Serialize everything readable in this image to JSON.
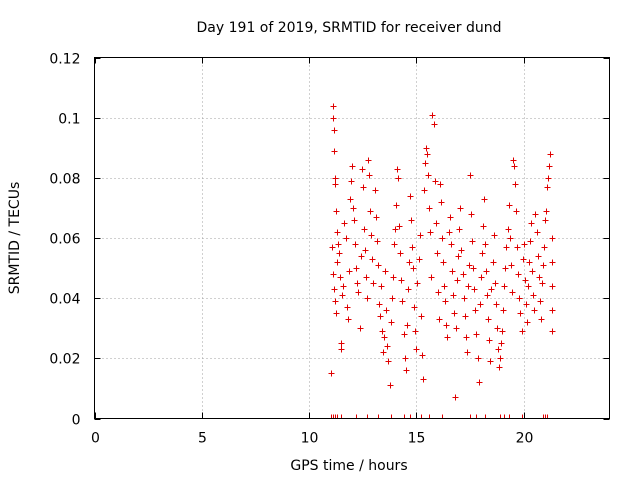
{
  "chart_data": {
    "type": "scatter",
    "title": "Day 191 of 2019, SRMTID for receiver dund",
    "xlabel": "GPS time / hours",
    "ylabel": "SRMTID / TECUs",
    "xlim": [
      0,
      24
    ],
    "ylim": [
      0,
      0.12
    ],
    "xticks": [
      0,
      5,
      10,
      15,
      20
    ],
    "xtick_labels": [
      "0",
      "5",
      "10",
      "15",
      "20"
    ],
    "yticks": [
      0,
      0.02,
      0.04,
      0.06,
      0.08,
      0.1,
      0.12
    ],
    "ytick_labels": [
      "0",
      "0.02",
      "0.04",
      "0.06",
      "0.08",
      "0.1",
      "0.12"
    ],
    "grid": true,
    "marker": "+",
    "color": "#e00000",
    "series": [
      {
        "name": "SRMTID",
        "points": [
          [
            11.0,
            0.015
          ],
          [
            11.05,
            0.057
          ],
          [
            11.1,
            0.104
          ],
          [
            11.12,
            0.1
          ],
          [
            11.15,
            0.096
          ],
          [
            11.18,
            0.089
          ],
          [
            11.2,
            0.08
          ],
          [
            11.22,
            0.078
          ],
          [
            11.25,
            0.069
          ],
          [
            11.28,
            0.062
          ],
          [
            11.1,
            0.048
          ],
          [
            11.15,
            0.043
          ],
          [
            11.2,
            0.039
          ],
          [
            11.25,
            0.035
          ],
          [
            11.3,
            0.052
          ],
          [
            11.35,
            0.058
          ],
          [
            11.4,
            0.055
          ],
          [
            11.45,
            0.047
          ],
          [
            11.5,
            0.025
          ],
          [
            11.5,
            0.023
          ],
          [
            11.55,
            0.041
          ],
          [
            11.6,
            0.044
          ],
          [
            11.65,
            0.065
          ],
          [
            11.7,
            0.06
          ],
          [
            11.75,
            0.037
          ],
          [
            11.8,
            0.033
          ],
          [
            11.85,
            0.049
          ],
          [
            11.9,
            0.073
          ],
          [
            11.95,
            0.079
          ],
          [
            12.0,
            0.084
          ],
          [
            12.05,
            0.07
          ],
          [
            12.1,
            0.066
          ],
          [
            12.15,
            0.058
          ],
          [
            12.2,
            0.05
          ],
          [
            12.25,
            0.045
          ],
          [
            12.3,
            0.042
          ],
          [
            12.35,
            0.03
          ],
          [
            12.4,
            0.054
          ],
          [
            12.45,
            0.083
          ],
          [
            12.5,
            0.077
          ],
          [
            12.55,
            0.063
          ],
          [
            12.6,
            0.056
          ],
          [
            12.65,
            0.047
          ],
          [
            12.7,
            0.04
          ],
          [
            12.75,
            0.086
          ],
          [
            12.8,
            0.081
          ],
          [
            12.85,
            0.069
          ],
          [
            12.9,
            0.061
          ],
          [
            12.95,
            0.053
          ],
          [
            13.0,
            0.045
          ],
          [
            13.05,
            0.076
          ],
          [
            13.1,
            0.067
          ],
          [
            13.15,
            0.059
          ],
          [
            13.2,
            0.051
          ],
          [
            13.25,
            0.038
          ],
          [
            13.3,
            0.034
          ],
          [
            13.35,
            0.044
          ],
          [
            13.4,
            0.029
          ],
          [
            13.45,
            0.022
          ],
          [
            13.5,
            0.027
          ],
          [
            13.55,
            0.049
          ],
          [
            13.6,
            0.036
          ],
          [
            13.65,
            0.024
          ],
          [
            13.7,
            0.019
          ],
          [
            13.75,
            0.011
          ],
          [
            13.8,
            0.032
          ],
          [
            13.85,
            0.04
          ],
          [
            13.9,
            0.047
          ],
          [
            13.95,
            0.058
          ],
          [
            14.0,
            0.063
          ],
          [
            14.05,
            0.071
          ],
          [
            14.1,
            0.083
          ],
          [
            14.15,
            0.08
          ],
          [
            14.2,
            0.064
          ],
          [
            14.25,
            0.055
          ],
          [
            14.3,
            0.046
          ],
          [
            14.35,
            0.039
          ],
          [
            14.4,
            0.028
          ],
          [
            14.45,
            0.02
          ],
          [
            14.5,
            0.016
          ],
          [
            14.55,
            0.031
          ],
          [
            14.6,
            0.043
          ],
          [
            14.65,
            0.052
          ],
          [
            14.7,
            0.074
          ],
          [
            14.75,
            0.066
          ],
          [
            14.8,
            0.057
          ],
          [
            14.85,
            0.05
          ],
          [
            14.9,
            0.037
          ],
          [
            14.95,
            0.029
          ],
          [
            15.0,
            0.023
          ],
          [
            15.05,
            0.045
          ],
          [
            15.1,
            0.053
          ],
          [
            15.15,
            0.061
          ],
          [
            15.2,
            0.034
          ],
          [
            15.25,
            0.021
          ],
          [
            15.3,
            0.013
          ],
          [
            15.35,
            0.076
          ],
          [
            15.4,
            0.085
          ],
          [
            15.45,
            0.09
          ],
          [
            15.5,
            0.088
          ],
          [
            15.55,
            0.081
          ],
          [
            15.6,
            0.07
          ],
          [
            15.65,
            0.062
          ],
          [
            15.7,
            0.047
          ],
          [
            15.75,
            0.101
          ],
          [
            15.8,
            0.098
          ],
          [
            15.85,
            0.079
          ],
          [
            15.9,
            0.065
          ],
          [
            15.95,
            0.055
          ],
          [
            16.0,
            0.042
          ],
          [
            16.05,
            0.033
          ],
          [
            16.1,
            0.078
          ],
          [
            16.15,
            0.072
          ],
          [
            16.2,
            0.06
          ],
          [
            16.25,
            0.052
          ],
          [
            16.3,
            0.044
          ],
          [
            16.35,
            0.039
          ],
          [
            16.4,
            0.031
          ],
          [
            16.45,
            0.027
          ],
          [
            16.5,
            0.062
          ],
          [
            16.55,
            0.067
          ],
          [
            16.6,
            0.058
          ],
          [
            16.65,
            0.049
          ],
          [
            16.7,
            0.041
          ],
          [
            16.75,
            0.035
          ],
          [
            16.8,
            0.007
          ],
          [
            16.85,
            0.03
          ],
          [
            16.9,
            0.046
          ],
          [
            16.95,
            0.054
          ],
          [
            17.0,
            0.063
          ],
          [
            17.05,
            0.07
          ],
          [
            17.1,
            0.056
          ],
          [
            17.15,
            0.048
          ],
          [
            17.2,
            0.04
          ],
          [
            17.25,
            0.034
          ],
          [
            17.3,
            0.027
          ],
          [
            17.35,
            0.022
          ],
          [
            17.4,
            0.044
          ],
          [
            17.45,
            0.051
          ],
          [
            17.5,
            0.081
          ],
          [
            17.55,
            0.068
          ],
          [
            17.6,
            0.059
          ],
          [
            17.65,
            0.05
          ],
          [
            17.7,
            0.043
          ],
          [
            17.75,
            0.036
          ],
          [
            17.8,
            0.028
          ],
          [
            17.85,
            0.02
          ],
          [
            17.9,
            0.012
          ],
          [
            17.95,
            0.038
          ],
          [
            18.0,
            0.047
          ],
          [
            18.05,
            0.055
          ],
          [
            18.1,
            0.064
          ],
          [
            18.15,
            0.073
          ],
          [
            18.2,
            0.058
          ],
          [
            18.25,
            0.049
          ],
          [
            18.3,
            0.041
          ],
          [
            18.35,
            0.033
          ],
          [
            18.4,
            0.026
          ],
          [
            18.45,
            0.019
          ],
          [
            18.5,
            0.043
          ],
          [
            18.55,
            0.052
          ],
          [
            18.6,
            0.061
          ],
          [
            18.65,
            0.045
          ],
          [
            18.7,
            0.038
          ],
          [
            18.75,
            0.03
          ],
          [
            18.8,
            0.023
          ],
          [
            18.85,
            0.017
          ],
          [
            18.9,
            0.02
          ],
          [
            18.95,
            0.025
          ],
          [
            19.0,
            0.029
          ],
          [
            19.05,
            0.036
          ],
          [
            19.1,
            0.044
          ],
          [
            19.15,
            0.05
          ],
          [
            19.2,
            0.057
          ],
          [
            19.25,
            0.063
          ],
          [
            19.3,
            0.071
          ],
          [
            19.35,
            0.06
          ],
          [
            19.4,
            0.051
          ],
          [
            19.45,
            0.042
          ],
          [
            19.5,
            0.086
          ],
          [
            19.55,
            0.084
          ],
          [
            19.6,
            0.078
          ],
          [
            19.65,
            0.069
          ],
          [
            19.7,
            0.057
          ],
          [
            19.75,
            0.048
          ],
          [
            19.8,
            0.04
          ],
          [
            19.85,
            0.035
          ],
          [
            19.9,
            0.029
          ],
          [
            19.95,
            0.053
          ],
          [
            20.0,
            0.058
          ],
          [
            20.05,
            0.046
          ],
          [
            20.1,
            0.038
          ],
          [
            20.15,
            0.032
          ],
          [
            20.2,
            0.044
          ],
          [
            20.25,
            0.052
          ],
          [
            20.3,
            0.059
          ],
          [
            20.35,
            0.065
          ],
          [
            20.4,
            0.049
          ],
          [
            20.45,
            0.041
          ],
          [
            20.5,
            0.036
          ],
          [
            20.55,
            0.068
          ],
          [
            20.6,
            0.062
          ],
          [
            20.65,
            0.054
          ],
          [
            20.7,
            0.047
          ],
          [
            20.75,
            0.039
          ],
          [
            20.8,
            0.033
          ],
          [
            20.85,
            0.045
          ],
          [
            20.9,
            0.051
          ],
          [
            20.95,
            0.057
          ],
          [
            21.0,
            0.066
          ],
          [
            21.05,
            0.069
          ],
          [
            21.1,
            0.077
          ],
          [
            21.15,
            0.08
          ],
          [
            21.2,
            0.084
          ],
          [
            21.25,
            0.088
          ],
          [
            21.3,
            0.06
          ],
          [
            21.3,
            0.052
          ],
          [
            21.3,
            0.044
          ],
          [
            21.3,
            0.036
          ],
          [
            21.3,
            0.029
          ]
        ]
      }
    ],
    "rug_x": [
      11.0,
      11.1,
      11.2,
      11.3,
      11.5,
      12.2,
      12.7,
      13.2,
      13.8,
      14.4,
      14.7,
      15.2,
      15.6,
      16.2,
      17.5,
      17.8,
      18.2,
      18.9,
      19.1,
      19.3,
      19.9,
      20.9,
      21.0,
      21.1
    ]
  }
}
